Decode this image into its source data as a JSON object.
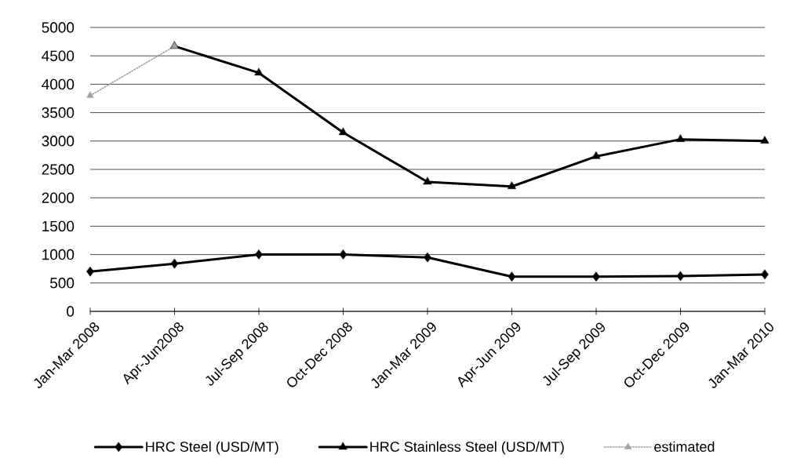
{
  "chart_data": {
    "type": "line",
    "categories": [
      "Jan-Mar 2008",
      "Apr-Jun2008",
      "Jul-Sep 2008",
      "Oct-Dec 2008",
      "Jan-Mar 2009",
      "Apr-Jun 2009",
      "Jul-Sep 2009",
      "Oct-Dec 2009",
      "Jan-Mar 2010"
    ],
    "series": [
      {
        "name": "HRC Steel (USD/MT)",
        "color": "#000000",
        "marker": "diamond",
        "line_style": "solid",
        "values": [
          700,
          840,
          1000,
          1000,
          950,
          610,
          610,
          620,
          650
        ]
      },
      {
        "name": "HRC Stainless Steel (USD/MT)",
        "color": "#000000",
        "marker": "triangle",
        "line_style": "solid",
        "values": [
          null,
          4670,
          4200,
          3150,
          2280,
          2200,
          2730,
          3030,
          3000
        ]
      },
      {
        "name": "estimated",
        "color": "#a0a0a0",
        "marker": "triangle",
        "line_style": "dotted",
        "values": [
          3800,
          4670,
          null,
          null,
          null,
          null,
          null,
          null,
          null
        ]
      }
    ],
    "ylim": [
      0,
      5000
    ],
    "yticks": [
      0,
      500,
      1000,
      1500,
      2000,
      2500,
      3000,
      3500,
      4000,
      4500,
      5000
    ],
    "grid": "y",
    "legend": "bottom"
  }
}
